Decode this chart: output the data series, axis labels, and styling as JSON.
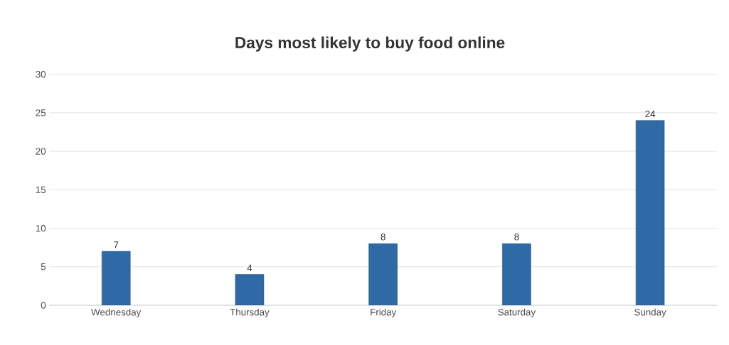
{
  "chart_data": {
    "type": "bar",
    "title": "Days most likely to buy food online",
    "categories": [
      "Wednesday",
      "Thursday",
      "Friday",
      "Saturday",
      "Sunday"
    ],
    "values": [
      7,
      4,
      8,
      8,
      24
    ],
    "color": "#2f6aa6",
    "ylim": [
      0,
      30
    ],
    "yticks": [
      0,
      5,
      10,
      15,
      20,
      25,
      30
    ],
    "grid": "y",
    "data_labels": true
  }
}
